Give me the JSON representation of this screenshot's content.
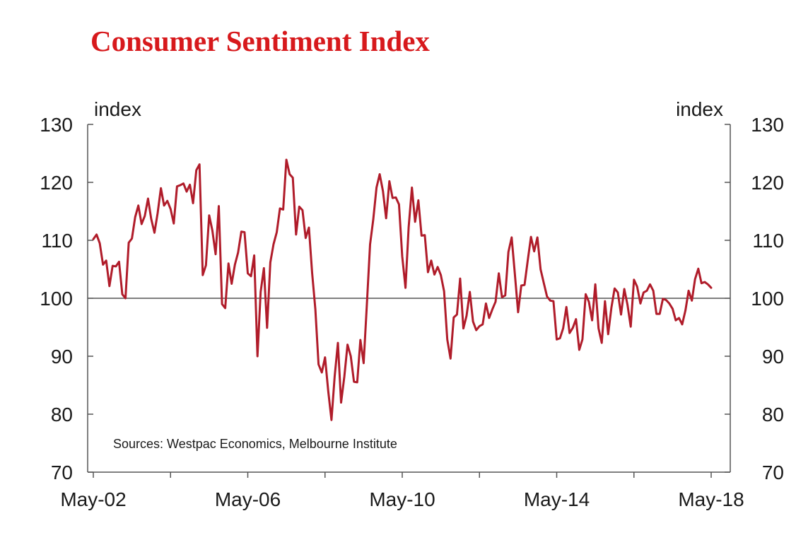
{
  "title": "Consumer Sentiment Index",
  "colors": {
    "title": "#d7191c",
    "series": "#b01c2a",
    "axis": "#555555",
    "reference": "#333333"
  },
  "chart_data": {
    "type": "line",
    "title": "Consumer Sentiment Index",
    "ylabel_left": "index",
    "ylabel_right": "index",
    "ylim": [
      70,
      130
    ],
    "yticks": [
      70,
      80,
      90,
      100,
      110,
      120,
      130
    ],
    "ytick_labels": [
      "70",
      "80",
      "90",
      "100",
      "110",
      "120",
      "130"
    ],
    "x_start": "May-02",
    "x_end": "May-18",
    "xticks": [
      "May-02",
      "May-06",
      "May-10",
      "May-14",
      "May-18"
    ],
    "reference_line": 100,
    "source": "Sources: Westpac Economics, Melbourne Institute",
    "series": [
      {
        "name": "Consumer Sentiment Index",
        "values": [
          110.2,
          111.0,
          109.5,
          105.8,
          106.5,
          102.1,
          105.6,
          105.5,
          106.3,
          100.7,
          100.0,
          109.6,
          110.3,
          114.0,
          116.0,
          112.8,
          114.2,
          117.2,
          113.7,
          111.3,
          114.7,
          119.0,
          116.0,
          116.8,
          115.4,
          112.9,
          119.3,
          119.5,
          119.8,
          118.4,
          119.6,
          116.4,
          122.1,
          123.1,
          104.0,
          105.7,
          114.3,
          111.7,
          107.6,
          115.9,
          99.0,
          98.3,
          106.0,
          102.5,
          105.8,
          107.9,
          111.5,
          111.4,
          104.3,
          103.8,
          107.4,
          90.0,
          101.1,
          105.2,
          94.9,
          106.2,
          109.3,
          111.4,
          115.5,
          115.3,
          123.9,
          121.4,
          120.8,
          111.0,
          115.8,
          115.2,
          110.4,
          112.2,
          104.4,
          98.1,
          88.6,
          87.2,
          89.8,
          84.0,
          79.0,
          86.5,
          92.3,
          82.0,
          86.5,
          92.0,
          90.0,
          85.6,
          85.5,
          92.8,
          88.8,
          98.8,
          109.3,
          113.6,
          119.1,
          121.4,
          118.5,
          113.8,
          120.2,
          117.3,
          117.4,
          116.2,
          107.2,
          101.8,
          112.3,
          119.1,
          113.2,
          116.9,
          110.8,
          110.9,
          104.5,
          106.5,
          104.1,
          105.4,
          104.0,
          101.2,
          92.9,
          89.6,
          96.7,
          97.2,
          103.4,
          94.8,
          97.0,
          101.1,
          96.0,
          94.5,
          95.2,
          95.5,
          99.1,
          96.6,
          98.1,
          99.4,
          104.3,
          100.2,
          100.5,
          108.0,
          110.5,
          104.2,
          97.6,
          102.2,
          102.3,
          106.5,
          110.6,
          108.1,
          110.5,
          105.0,
          102.6,
          100.3,
          99.6,
          99.5,
          92.9,
          93.1,
          94.8,
          98.5,
          94.0,
          94.9,
          96.4,
          91.1,
          92.9,
          100.7,
          99.4,
          96.2,
          102.4,
          94.8,
          92.3,
          99.5,
          93.8,
          98.4,
          101.7,
          101.0,
          97.2,
          101.6,
          98.9,
          95.1,
          103.2,
          102.0,
          99.1,
          101.0,
          101.3,
          102.4,
          101.3,
          97.3,
          97.3,
          99.9,
          99.7,
          99.1,
          98.2,
          96.2,
          96.6,
          95.5,
          97.9,
          101.3,
          99.6,
          103.3,
          105.1,
          102.6,
          102.8,
          102.4,
          101.8
        ]
      }
    ]
  }
}
